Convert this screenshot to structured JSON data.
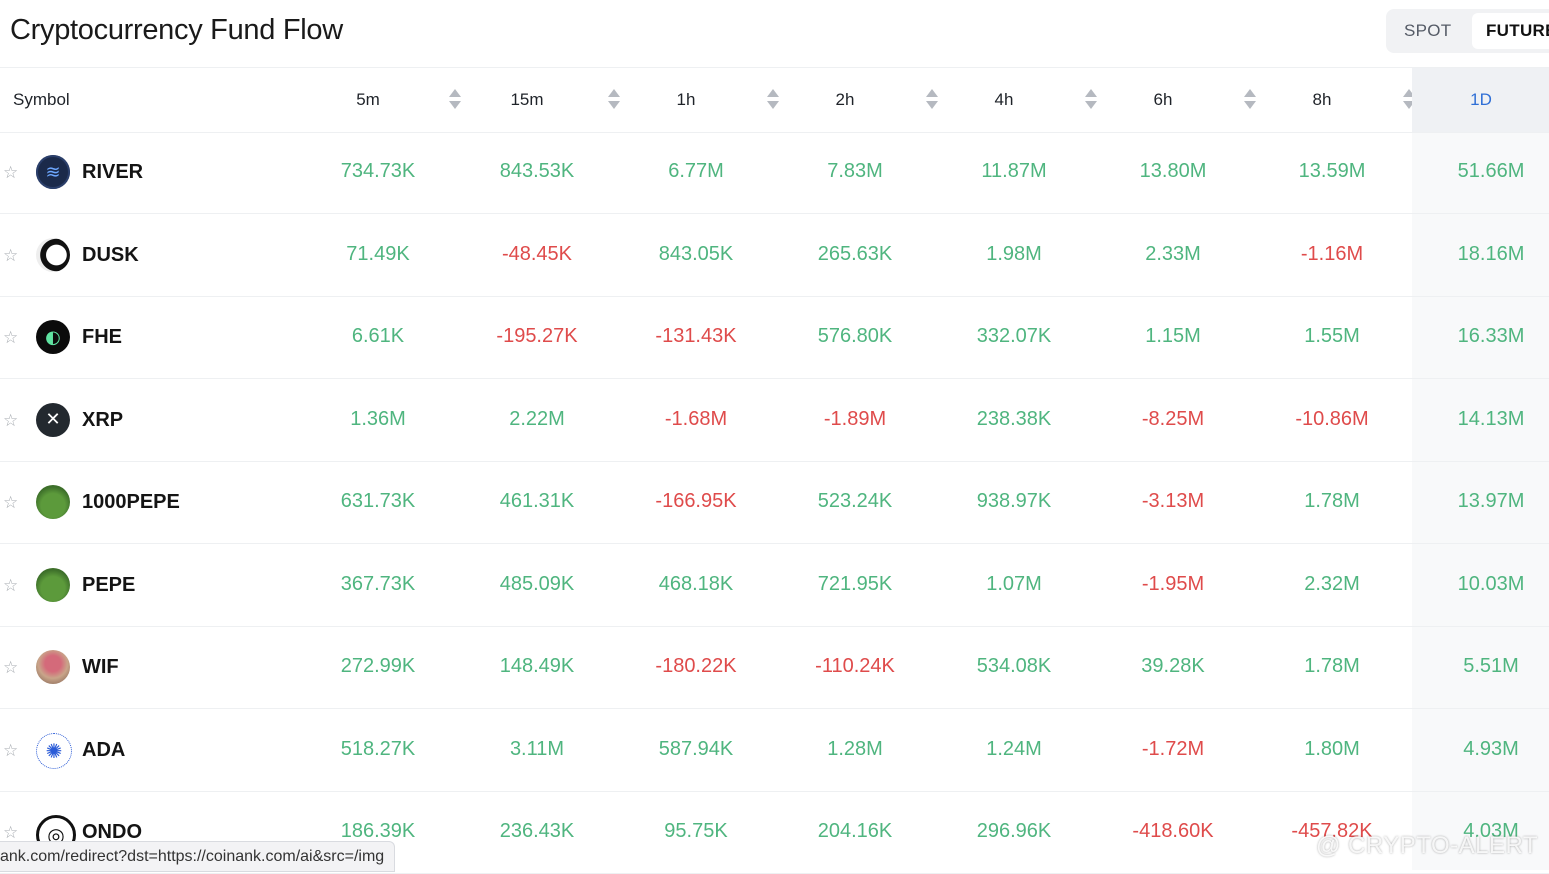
{
  "title": "Cryptocurrency Fund Flow",
  "market_toggle": {
    "spot": "SPOT",
    "futures": "FUTURES",
    "selected": "FUTURES"
  },
  "table": {
    "symbol_header": "Symbol",
    "columns": [
      "5m",
      "15m",
      "1h",
      "2h",
      "4h",
      "6h",
      "8h",
      "1D"
    ],
    "active_column": "1D",
    "rows": [
      {
        "symbol": "RIVER",
        "icon": "river-coin-icon",
        "values": [
          "734.73K",
          "843.53K",
          "6.77M",
          "7.83M",
          "11.87M",
          "13.80M",
          "13.59M",
          "51.66M"
        ]
      },
      {
        "symbol": "DUSK",
        "icon": "dusk-coin-icon",
        "values": [
          "71.49K",
          "-48.45K",
          "843.05K",
          "265.63K",
          "1.98M",
          "2.33M",
          "-1.16M",
          "18.16M"
        ]
      },
      {
        "symbol": "FHE",
        "icon": "fhe-coin-icon",
        "values": [
          "6.61K",
          "-195.27K",
          "-131.43K",
          "576.80K",
          "332.07K",
          "1.15M",
          "1.55M",
          "16.33M"
        ]
      },
      {
        "symbol": "XRP",
        "icon": "xrp-coin-icon",
        "values": [
          "1.36M",
          "2.22M",
          "-1.68M",
          "-1.89M",
          "238.38K",
          "-8.25M",
          "-10.86M",
          "14.13M"
        ]
      },
      {
        "symbol": "1000PEPE",
        "icon": "pepe-frog-icon",
        "values": [
          "631.73K",
          "461.31K",
          "-166.95K",
          "523.24K",
          "938.97K",
          "-3.13M",
          "1.78M",
          "13.97M"
        ]
      },
      {
        "symbol": "PEPE",
        "icon": "pepe-frog-icon",
        "values": [
          "367.73K",
          "485.09K",
          "468.18K",
          "721.95K",
          "1.07M",
          "-1.95M",
          "2.32M",
          "10.03M"
        ]
      },
      {
        "symbol": "WIF",
        "icon": "wif-dog-icon",
        "values": [
          "272.99K",
          "148.49K",
          "-180.22K",
          "-110.24K",
          "534.08K",
          "39.28K",
          "1.78M",
          "5.51M"
        ]
      },
      {
        "symbol": "ADA",
        "icon": "ada-coin-icon",
        "values": [
          "518.27K",
          "3.11M",
          "587.94K",
          "1.28M",
          "1.24M",
          "-1.72M",
          "1.80M",
          "4.93M"
        ]
      },
      {
        "symbol": "ONDO",
        "icon": "ondo-coin-icon",
        "values": [
          "186.39K",
          "236.43K",
          "95.75K",
          "204.16K",
          "296.96K",
          "-418.60K",
          "-457.82K",
          "4.03M"
        ]
      }
    ]
  },
  "colors": {
    "positive": "#4fb57f",
    "negative": "#df4b4b",
    "active": "#2f6fd6"
  },
  "status_link": "ank.com/redirect?dst=https://coinank.com/ai&src=/img",
  "watermark": "@ CRYPTO-ALERT"
}
